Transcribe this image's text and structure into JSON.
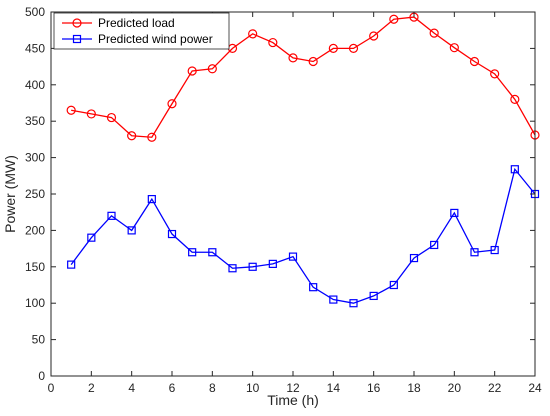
{
  "chart_data": {
    "type": "line",
    "title": "",
    "xlabel": "Time (h)",
    "ylabel": "Power (MW)",
    "xlim": [
      0,
      24
    ],
    "ylim": [
      0,
      500
    ],
    "xticks": [
      "0",
      "2",
      "4",
      "6",
      "8",
      "10",
      "12",
      "14",
      "16",
      "18",
      "20",
      "22",
      "24"
    ],
    "yticks": [
      "0",
      "50",
      "100",
      "150",
      "200",
      "250",
      "300",
      "350",
      "400",
      "450",
      "500"
    ],
    "x": [
      1,
      2,
      3,
      4,
      5,
      6,
      7,
      8,
      9,
      10,
      11,
      12,
      13,
      14,
      15,
      16,
      17,
      18,
      19,
      20,
      21,
      22,
      23,
      24
    ],
    "series": [
      {
        "name": "Predicted load",
        "color": "#ff0000",
        "marker": "circle",
        "values": [
          365,
          360,
          355,
          330,
          328,
          374,
          419,
          422,
          450,
          470,
          458,
          437,
          432,
          450,
          450,
          467,
          490,
          493,
          471,
          451,
          432,
          415,
          380,
          331
        ]
      },
      {
        "name": "Predicted wind power",
        "color": "#0000ff",
        "marker": "square",
        "values": [
          153,
          190,
          220,
          200,
          243,
          195,
          170,
          170,
          148,
          150,
          154,
          164,
          122,
          105,
          100,
          110,
          125,
          162,
          180,
          224,
          170,
          173,
          284,
          250
        ]
      }
    ],
    "legend_position": "top-left",
    "grid": false
  }
}
